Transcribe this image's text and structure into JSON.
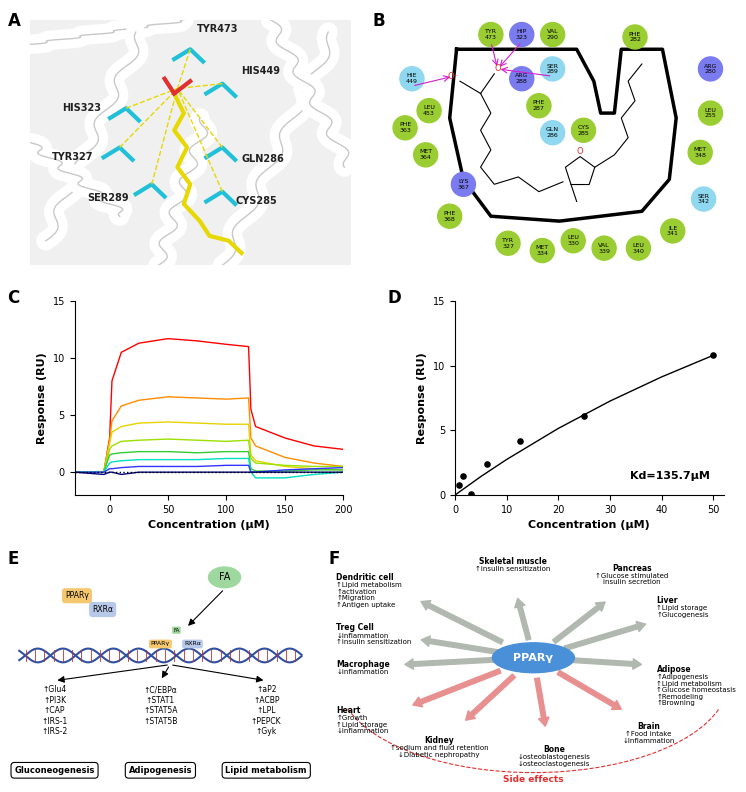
{
  "panel_labels": [
    "A",
    "B",
    "C",
    "D",
    "E",
    "F"
  ],
  "structure": {
    "residues": [
      "TYR473",
      "HIS449",
      "HIS323",
      "TYR327",
      "SER289",
      "GLN286",
      "CYS285"
    ]
  },
  "interaction_map": {
    "residues": [
      {
        "name": "TYR",
        "number": 473,
        "color": "#9acd32"
      },
      {
        "name": "HIP",
        "number": 323,
        "color": "#7b7bf0"
      },
      {
        "name": "VAL",
        "number": 290,
        "color": "#9acd32"
      },
      {
        "name": "SER",
        "number": 289,
        "color": "#8fd8f0"
      },
      {
        "name": "ARG",
        "number": 288,
        "color": "#7b7bf0"
      },
      {
        "name": "HIE",
        "number": 449,
        "color": "#8fd8f0"
      },
      {
        "name": "LEU",
        "number": 453,
        "color": "#9acd32"
      },
      {
        "name": "PHE",
        "number": 287,
        "color": "#9acd32"
      },
      {
        "name": "GLN",
        "number": 286,
        "color": "#8fd8f0"
      },
      {
        "name": "CYS",
        "number": 285,
        "color": "#9acd32"
      },
      {
        "name": "PHE",
        "number": 282,
        "color": "#9acd32"
      },
      {
        "name": "ARG",
        "number": 280,
        "color": "#7b7bf0"
      },
      {
        "name": "LEU",
        "number": 255,
        "color": "#9acd32"
      },
      {
        "name": "MET",
        "number": 348,
        "color": "#9acd32"
      },
      {
        "name": "SER",
        "number": 342,
        "color": "#8fd8f0"
      },
      {
        "name": "ILE",
        "number": 341,
        "color": "#9acd32"
      },
      {
        "name": "LEU",
        "number": 340,
        "color": "#9acd32"
      },
      {
        "name": "VAL",
        "number": 339,
        "color": "#9acd32"
      },
      {
        "name": "LEU",
        "number": 330,
        "color": "#9acd32"
      },
      {
        "name": "MET",
        "number": 334,
        "color": "#9acd32"
      },
      {
        "name": "TYR",
        "number": 327,
        "color": "#9acd32"
      },
      {
        "name": "PHE",
        "number": 368,
        "color": "#9acd32"
      },
      {
        "name": "LYS",
        "number": 367,
        "color": "#7b7bf0"
      },
      {
        "name": "MET",
        "number": 364,
        "color": "#9acd32"
      },
      {
        "name": "PHE",
        "number": 363,
        "color": "#9acd32"
      }
    ],
    "ligand_atoms": [
      "O⁻",
      "O",
      "O"
    ]
  },
  "chart_data": [
    {
      "type": "line",
      "x_label": "Concentration (μM)",
      "y_label": "Response (RU)",
      "x": [
        -30,
        -5,
        0,
        2,
        10,
        25,
        50,
        75,
        100,
        119,
        121,
        125,
        150,
        175,
        200
      ],
      "series": [
        {
          "color": "#ff0000",
          "line_style": "solid",
          "values": [
            0,
            0,
            3,
            8,
            10.5,
            11.3,
            11.7,
            11.5,
            11.2,
            11,
            5.5,
            4,
            3,
            2.3,
            2
          ]
        },
        {
          "color": "#ff8c00",
          "line_style": "solid",
          "values": [
            0,
            0,
            2.8,
            4.5,
            5.8,
            6.3,
            6.6,
            6.5,
            6.4,
            6.5,
            3,
            2.3,
            1.3,
            0.8,
            0.5
          ]
        },
        {
          "color": "#e6d200",
          "line_style": "solid",
          "values": [
            0,
            0,
            2.5,
            3.5,
            4,
            4.3,
            4.4,
            4.3,
            4.2,
            4.2,
            1.5,
            1,
            0.5,
            0.3,
            0.2
          ]
        },
        {
          "color": "#9be000",
          "line_style": "solid",
          "values": [
            0,
            0,
            2,
            2.3,
            2.7,
            2.8,
            2.9,
            2.8,
            2.7,
            2.8,
            1.2,
            0.8,
            0.6,
            0.5,
            0.5
          ]
        },
        {
          "color": "#33cc33",
          "line_style": "solid",
          "values": [
            0,
            0,
            1.5,
            1.6,
            1.7,
            1.8,
            1.8,
            1.7,
            1.8,
            1.8,
            0.3,
            0.1,
            0.1,
            0.2,
            0.2
          ]
        },
        {
          "color": "#00e0c0",
          "line_style": "solid",
          "values": [
            0,
            0,
            0.8,
            0.9,
            1,
            1.1,
            1.1,
            1.1,
            1.2,
            1.2,
            0,
            -0.5,
            -0.5,
            -0.2,
            0
          ]
        },
        {
          "color": "#3333ff",
          "line_style": "solid",
          "values": [
            0,
            0,
            0.3,
            0.3,
            0.4,
            0.5,
            0.5,
            0.5,
            0.6,
            0.6,
            0,
            0,
            0.2,
            0.3,
            0.4
          ]
        },
        {
          "color": "#000080",
          "line_style": "solid",
          "values": [
            0,
            -0.2,
            0,
            0,
            -0.2,
            0,
            0,
            0,
            0,
            0,
            0,
            0,
            0,
            0,
            0
          ]
        },
        {
          "color": "#000000",
          "line_style": "dotted",
          "values": [
            0,
            0,
            0,
            0,
            0,
            0,
            0,
            0,
            0,
            0,
            0,
            0,
            0,
            0,
            0
          ]
        }
      ],
      "xlim": [
        -30,
        200
      ],
      "xticks": [
        0,
        50,
        100,
        150,
        200
      ],
      "ylim": [
        -2,
        15
      ],
      "yticks": [
        0,
        5,
        10,
        15
      ]
    },
    {
      "type": "scatter",
      "x_label": "Concentration (μM)",
      "y_label": "Response (RU)",
      "x": [
        0.78,
        1.56,
        3.125,
        6.25,
        12.5,
        25,
        50
      ],
      "values": [
        0.8,
        1.5,
        0.1,
        2.4,
        4.2,
        6.1,
        10.8
      ],
      "color": "#000000",
      "marker": "circle",
      "fit": {
        "x": [
          0,
          5,
          10,
          20,
          30,
          40,
          50
        ],
        "values": [
          0,
          1.43,
          2.75,
          5.15,
          7.26,
          9.13,
          10.8
        ],
        "color": "#000000"
      },
      "annotation": "Kd=135.7μM",
      "xlim": [
        0,
        52
      ],
      "xticks": [
        0,
        10,
        20,
        30,
        40,
        50
      ],
      "ylim": [
        0,
        15
      ],
      "yticks": [
        0,
        5,
        10,
        15
      ]
    }
  ],
  "pathway": {
    "ligand": "FA",
    "receptors": [
      "PPARγ",
      "RXRα"
    ],
    "branches": [
      {
        "genes": [
          "↑Glu4",
          "↑PI3K",
          "↑CAP",
          "↑IRS-1",
          "↑IRS-2"
        ],
        "process": "Gluconeogenesis"
      },
      {
        "genes": [
          "↑C/EBPα",
          "↑STAT1",
          "↑STAT5A",
          "↑STAT5B"
        ],
        "process": "Adipogenesis"
      },
      {
        "genes": [
          "↑aP2",
          "↑ACBP",
          "↑LPL",
          "↑PEPCK",
          "↑Gyk"
        ],
        "process": "Lipid metabolism"
      }
    ]
  },
  "effects": {
    "center": "PPARγ",
    "side_effects_label": "Side effects",
    "nodes": [
      {
        "title": "Dendritic cell",
        "items": [
          "↑Lipid metabolism",
          "↑activation",
          "↑Migration",
          "↑Antigen uptake"
        ],
        "color": "#b0b8b0"
      },
      {
        "title": "Skeletal muscle",
        "items": [
          "↑insulin sensitization"
        ],
        "color": "#b0b8b0"
      },
      {
        "title": "Pancreas",
        "items": [
          "↑Glucose stimulated",
          "insulin secretion"
        ],
        "color": "#b0b8b0"
      },
      {
        "title": "Liver",
        "items": [
          "↑Lipid storage",
          "↑Glucogenesis"
        ],
        "color": "#b0b8b0"
      },
      {
        "title": "Adipose",
        "items": [
          "↑Adipogenesis",
          "↑Lipid metabolism",
          "↑Glucose homeostasis",
          "↑Remodeling",
          "↑Browning"
        ],
        "color": "#b0b8b0"
      },
      {
        "title": "Treg Cell",
        "items": [
          "↓inflammation",
          "↑insulin sensitization"
        ],
        "color": "#b0b8b0"
      },
      {
        "title": "Macrophage",
        "items": [
          "↓inflammation"
        ],
        "color": "#b0b8b0"
      },
      {
        "title": "Heart",
        "items": [
          "↑Growth",
          "↑Lipid storage",
          "↓inflammation"
        ],
        "color": "#e89090"
      },
      {
        "title": "Kidney",
        "items": [
          "↑sodium and fluid retention",
          "↓Diabetic nephropathy"
        ],
        "color": "#e89090"
      },
      {
        "title": "Bone",
        "items": [
          "↓osteoblastogenesis",
          "↓osteoclastogenesis"
        ],
        "color": "#e89090"
      },
      {
        "title": "Brain",
        "items": [
          "↑Food intake",
          "↓Inflammation"
        ],
        "color": "#e89090"
      }
    ]
  }
}
